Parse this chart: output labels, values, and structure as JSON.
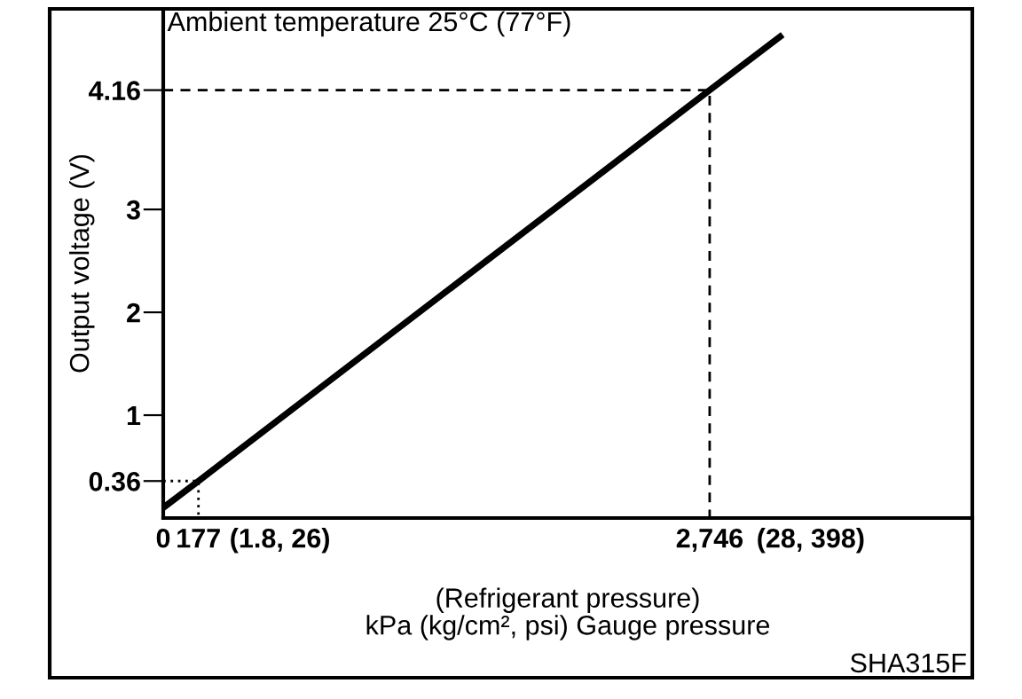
{
  "chart_data": {
    "type": "line",
    "title": "Ambient temperature 25°C (77°F)",
    "xlabel": "(Refrigerant pressure)\nkPa (kg/cm², psi) Gauge pressure",
    "ylabel": "Output voltage (V)",
    "series": [
      {
        "color": "#000000",
        "x": [
          0,
          177,
          2746,
          3100
        ],
        "values": [
          0.1,
          0.36,
          4.16,
          4.68
        ],
        "line_style": "solid"
      },
      {
        "color": "#000000",
        "x": [
          0,
          2746,
          2746
        ],
        "values": [
          4.16,
          4.16,
          0
        ],
        "line_style": "dashed"
      },
      {
        "color": "#000000",
        "x": [
          0,
          177,
          177
        ],
        "values": [
          0.36,
          0.36,
          0
        ],
        "line_style": "dotted"
      }
    ],
    "xlim": [
      0,
      4066
    ],
    "ylim": [
      0,
      4.95
    ],
    "xticks": [
      0,
      {
        "value": 177,
        "label": "177"
      },
      {
        "value": 2746,
        "label": "2,746"
      }
    ],
    "yticks": [
      0.36,
      1,
      2,
      3,
      4.16
    ],
    "grid": false,
    "legend": false,
    "marker": "none",
    "annotations": [
      "(1.8, 26)",
      "(28, 398)",
      "SHA315F"
    ]
  }
}
